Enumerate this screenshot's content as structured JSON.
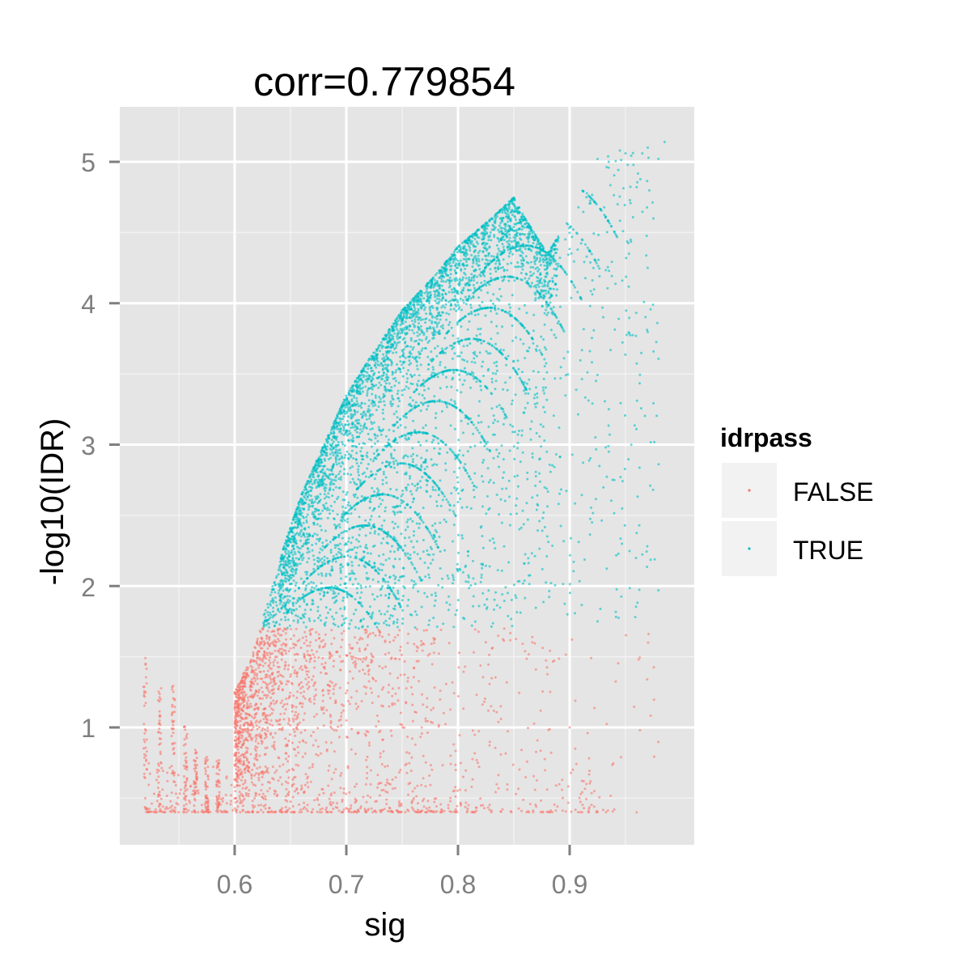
{
  "chart_data": {
    "type": "scatter",
    "title": "corr=0.779854",
    "xlabel": "sig",
    "ylabel": "-log10(IDR)",
    "xlim": [
      0.5,
      1.0
    ],
    "ylim": [
      0.33,
      5.33
    ],
    "x_ticks": [
      "0.6",
      "0.7",
      "0.8",
      "0.9"
    ],
    "y_ticks": [
      "1",
      "2",
      "3",
      "4",
      "5"
    ],
    "grid": true,
    "legend": {
      "title": "idrpass",
      "position": "right",
      "entries": [
        {
          "label": "FALSE",
          "color": "#F8766D"
        },
        {
          "label": "TRUE",
          "color": "#00BFC4"
        }
      ]
    },
    "threshold": 1.7,
    "series": [
      {
        "name": "FALSE",
        "color": "#F8766D",
        "approx_points": [
          [
            0.52,
            0.4
          ],
          [
            0.52,
            1.46
          ],
          [
            0.533,
            1.26
          ],
          [
            0.545,
            1.28
          ],
          [
            0.556,
            1.0
          ],
          [
            0.6,
            1.3
          ],
          [
            0.62,
            1.55
          ],
          [
            0.64,
            1.7
          ],
          [
            0.7,
            1.68
          ],
          [
            0.8,
            1.65
          ],
          [
            0.85,
            1.7
          ],
          [
            0.9,
            0.45
          ],
          [
            0.96,
            0.4
          ]
        ]
      },
      {
        "name": "TRUE",
        "color": "#00BFC4",
        "approx_points": [
          [
            0.645,
            1.7
          ],
          [
            0.7,
            3.2
          ],
          [
            0.75,
            3.95
          ],
          [
            0.8,
            4.4
          ],
          [
            0.85,
            4.85
          ],
          [
            0.9,
            4.5
          ],
          [
            0.93,
            5.05
          ],
          [
            0.985,
            5.15
          ]
        ]
      }
    ]
  }
}
